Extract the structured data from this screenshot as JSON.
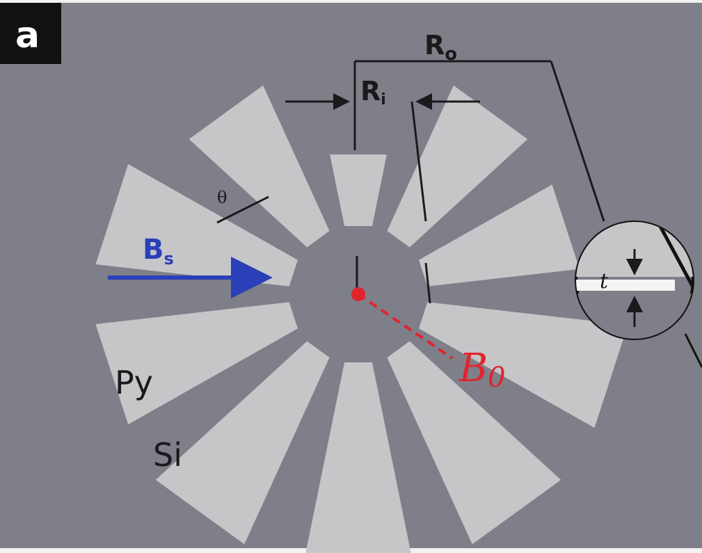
{
  "panel": {
    "label": "a",
    "background": "#7f7f89",
    "panel_label_bg": "#111111"
  },
  "colors": {
    "sector": "#c6c6c8",
    "dim_line": "#1a1a1a",
    "field_bs": "#2a3fb8",
    "field_b0": "#e0242e",
    "gap_highlight": "#f4f4f4"
  },
  "labels": {
    "outer_radius": "R",
    "outer_radius_sub": "o",
    "inner_radius": "R",
    "inner_radius_sub": "i",
    "angle": "θ",
    "thickness": "t",
    "applied_field": "B",
    "applied_field_sub": "s",
    "center_field": "B",
    "center_field_sub": "0",
    "material_sector": "Py",
    "material_substrate": "Si"
  },
  "icons": {
    "magnifier": "magnifier-circle-icon",
    "arrow": "arrow-icon"
  }
}
